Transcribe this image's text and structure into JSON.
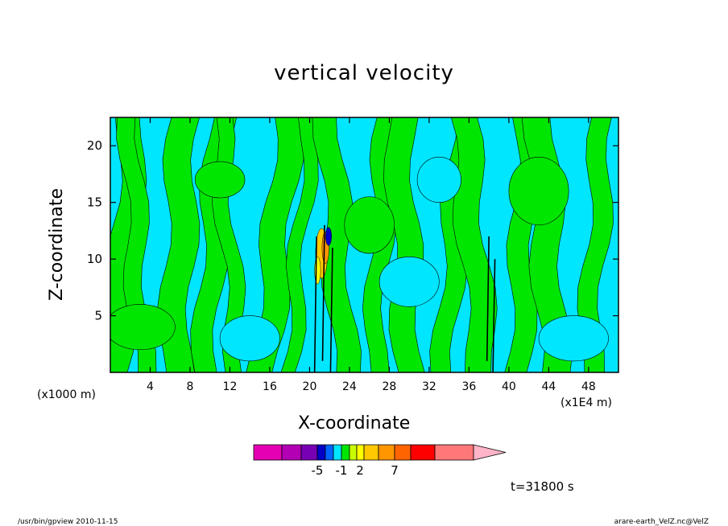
{
  "chart_data": {
    "type": "heatmap",
    "title": "vertical velocity",
    "xlabel": "X-coordinate",
    "ylabel": "Z-coordinate",
    "x_unit_note": "(x1000 m)",
    "x_scale_note": "(x1E4 m)",
    "x_ticks": [
      4,
      8,
      12,
      16,
      20,
      24,
      28,
      32,
      36,
      40,
      44,
      48
    ],
    "y_ticks": [
      5,
      10,
      15,
      20
    ],
    "xlim": [
      0,
      51
    ],
    "ylim": [
      0,
      22.5
    ],
    "colorbar": {
      "labels": [
        {
          "value": -5,
          "text": "-5"
        },
        {
          "value": -1,
          "text": "-1"
        },
        {
          "value": 2,
          "text": "2"
        },
        {
          "value": 7,
          "text": "7"
        }
      ],
      "colors": [
        "#e600b4",
        "#b400b4",
        "#7800b4",
        "#0000c8",
        "#0064ff",
        "#00e6ff",
        "#00e600",
        "#c8ff00",
        "#ffff00",
        "#ffc800",
        "#ff9600",
        "#ff6400",
        "#ff0000",
        "#ff7878"
      ],
      "extend_color": "#ffb4c8"
    },
    "time_label": "t=31800 s",
    "footer_left": "/usr/bin/gpview   2010-11-15",
    "footer_right": "arare-earth_VelZ.nc@VelZ"
  }
}
